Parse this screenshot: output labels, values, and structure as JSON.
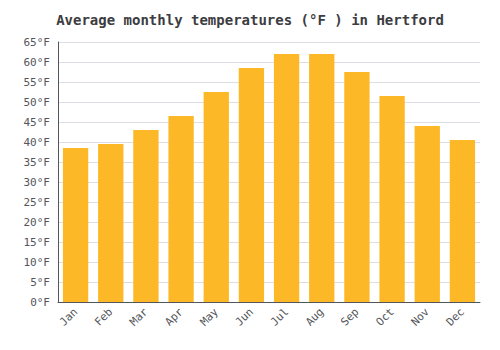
{
  "chart_data": {
    "type": "bar",
    "title": "Average monthly temperatures (°F ) in Hertford",
    "categories": [
      "Jan",
      "Feb",
      "Mar",
      "Apr",
      "May",
      "Jun",
      "Jul",
      "Aug",
      "Sep",
      "Oct",
      "Nov",
      "Dec"
    ],
    "values": [
      38.5,
      39.5,
      43.0,
      46.5,
      52.5,
      58.5,
      62.0,
      62.0,
      57.5,
      51.5,
      44.0,
      40.5
    ],
    "color": "#FDB827",
    "ylim": [
      0,
      65
    ],
    "yticks": [
      {
        "value": 0,
        "label": "0°F"
      },
      {
        "value": 5,
        "label": "5°F"
      },
      {
        "value": 10,
        "label": "10°F"
      },
      {
        "value": 15,
        "label": "15°F"
      },
      {
        "value": 20,
        "label": "20°F"
      },
      {
        "value": 25,
        "label": "25°F"
      },
      {
        "value": 30,
        "label": "30°F"
      },
      {
        "value": 35,
        "label": "35°F"
      },
      {
        "value": 40,
        "label": "40°F"
      },
      {
        "value": 45,
        "label": "45°F"
      },
      {
        "value": 50,
        "label": "50°F"
      },
      {
        "value": 55,
        "label": "55°F"
      },
      {
        "value": 60,
        "label": "60°F"
      },
      {
        "value": 65,
        "label": "65°F"
      }
    ],
    "grid": true
  }
}
